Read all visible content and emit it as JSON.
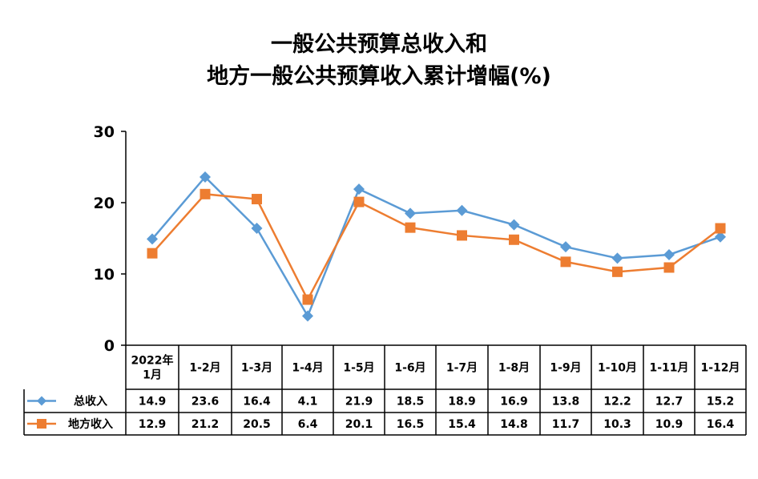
{
  "title_line1": "一般公共预算总收入和",
  "title_line2": "地方一般公共预算收入累计增幅(%)",
  "chart_data": {
    "type": "line",
    "title": "一般公共预算总收入和地方一般公共预算收入累计增幅(%)",
    "categories": [
      "2022年1月",
      "1-2月",
      "1-3月",
      "1-4月",
      "1-5月",
      "1-6月",
      "1-7月",
      "1-8月",
      "1-9月",
      "1-10月",
      "1-11月",
      "1-12月"
    ],
    "category_labels": [
      [
        "2022年",
        "1月"
      ],
      [
        "1-2月"
      ],
      [
        "1-3月"
      ],
      [
        "1-4月"
      ],
      [
        "1-5月"
      ],
      [
        "1-6月"
      ],
      [
        "1-7月"
      ],
      [
        "1-8月"
      ],
      [
        "1-9月"
      ],
      [
        "1-10月"
      ],
      [
        "1-11月"
      ],
      [
        "1-12月"
      ]
    ],
    "series": [
      {
        "name": "总收入",
        "color": "#5B9BD5",
        "marker": "diamond",
        "values": [
          14.9,
          23.6,
          16.4,
          4.1,
          21.9,
          18.5,
          18.9,
          16.9,
          13.8,
          12.2,
          12.7,
          15.2
        ],
        "value_labels": [
          "14.9",
          "23.6",
          "16.4",
          "4.1",
          "21.9",
          "18.5",
          "18.9",
          "16.9",
          "13.8",
          "12.2",
          "12.7",
          "15.2"
        ]
      },
      {
        "name": "地方收入",
        "color": "#ED7D31",
        "marker": "square",
        "values": [
          12.9,
          21.2,
          20.5,
          6.4,
          20.1,
          16.5,
          15.4,
          14.8,
          11.7,
          10.3,
          10.9,
          16.4
        ],
        "value_labels": [
          "12.9",
          "21.2",
          "20.5",
          "6.4",
          "20.1",
          "16.5",
          "15.4",
          "14.8",
          "11.7",
          "10.3",
          "10.9",
          "16.4"
        ]
      }
    ],
    "ylim": [
      0,
      30
    ],
    "yticks": [
      "0",
      "10",
      "20",
      "30"
    ],
    "grid": false,
    "legend": "data-table"
  }
}
